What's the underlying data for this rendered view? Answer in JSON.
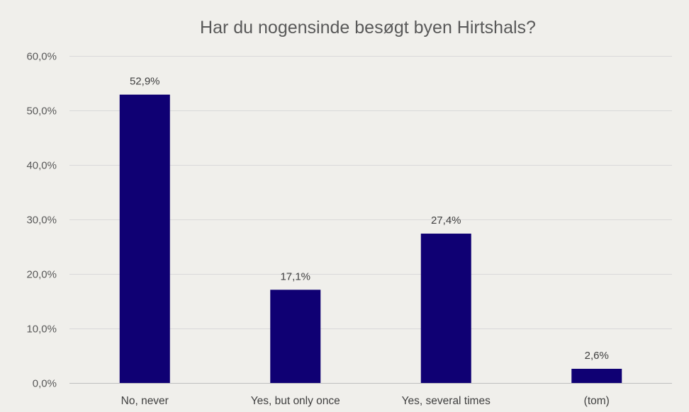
{
  "chart_data": {
    "type": "bar",
    "title": "Har du nogensinde besøgt byen Hirtshals?",
    "xlabel": "",
    "ylabel": "",
    "categories": [
      "No, never",
      "Yes, but only once",
      "Yes, several times",
      "(tom)"
    ],
    "values": [
      52.9,
      17.1,
      27.4,
      2.6
    ],
    "data_labels": [
      "52,9%",
      "17,1%",
      "27,4%",
      "2,6%"
    ],
    "ylim": [
      0,
      60
    ],
    "yticks": [
      0,
      10,
      20,
      30,
      40,
      50,
      60
    ],
    "ytick_labels": [
      "0,0%",
      "10,0%",
      "20,0%",
      "30,0%",
      "40,0%",
      "50,0%",
      "60,0%"
    ],
    "grid": true,
    "legend": "none",
    "bar_color": "#0f0073"
  }
}
